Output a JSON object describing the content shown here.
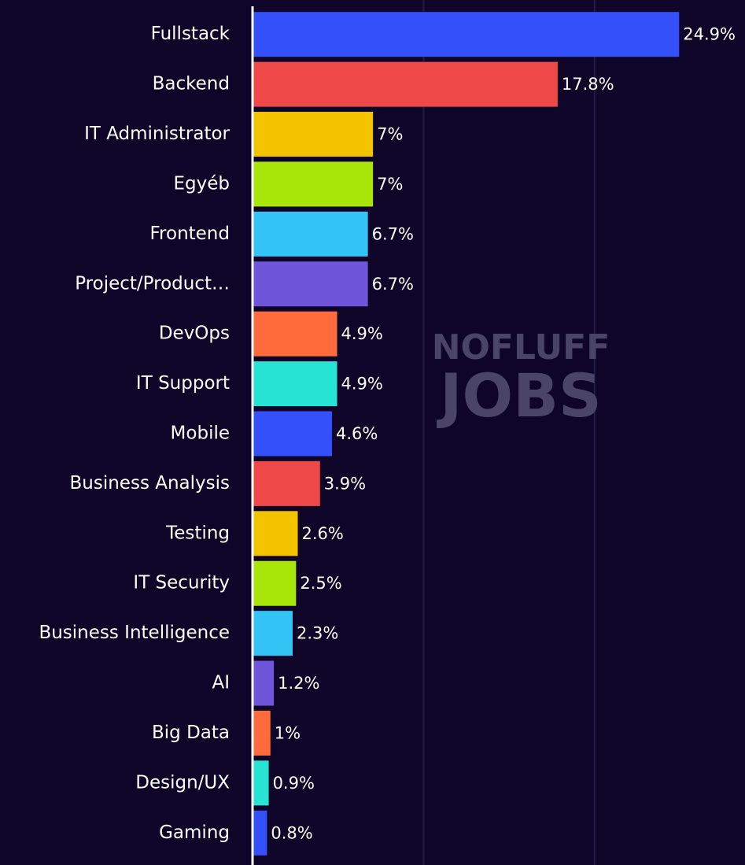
{
  "chart_data": {
    "type": "bar",
    "orientation": "horizontal",
    "watermark": [
      "NOFLUFF",
      "JOBS"
    ],
    "categories": [
      "Fullstack",
      "Backend",
      "IT Administrator",
      "Egyéb",
      "Frontend",
      "Project/Product…",
      "DevOps",
      "IT Support",
      "Mobile",
      "Business Analysis",
      "Testing",
      "IT Security",
      "Business Intelligence",
      "AI",
      "Big Data",
      "Design/UX",
      "Gaming"
    ],
    "values": [
      24.9,
      17.8,
      7,
      7,
      6.7,
      6.7,
      4.9,
      4.9,
      4.6,
      3.9,
      2.6,
      2.5,
      2.3,
      1.2,
      1,
      0.9,
      0.8
    ],
    "value_labels": [
      "24.9%",
      "17.8%",
      "7%",
      "7%",
      "6.7%",
      "6.7%",
      "4.9%",
      "4.9%",
      "4.6%",
      "3.9%",
      "2.6%",
      "2.5%",
      "2.3%",
      "1.2%",
      "1%",
      "0.9%",
      "0.8%"
    ],
    "colors": [
      "#3350fa",
      "#ee4848",
      "#f3c300",
      "#a8e60a",
      "#33c3f4",
      "#6f55da",
      "#ff6b3b",
      "#27e3d3",
      "#3350fa",
      "#ee4848",
      "#f3c300",
      "#a8e60a",
      "#33c3f4",
      "#6f55da",
      "#ff6b3b",
      "#27e3d3",
      "#3350fa"
    ],
    "xlim": [
      0,
      28.8
    ],
    "grid_values": [
      10,
      20
    ],
    "grid": true
  }
}
